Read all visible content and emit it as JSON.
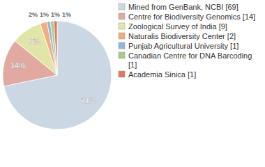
{
  "chart_data": {
    "type": "pie",
    "categories": [
      "Mined from GenBank, NCBI [69]",
      "Centre for Biodiversity Genomics [14]",
      "Zoological Survey of India [9]",
      "Naturalis Biodiversity Center [2]",
      "Punjab Agricultural University [1]",
      "Canadian Centre for DNA Barcoding [1]",
      "Academia Sinica [1]"
    ],
    "values": [
      71,
      14,
      9,
      2,
      1,
      1,
      1
    ],
    "value_labels": [
      "71%",
      "14%",
      "9%",
      "2%",
      "1%",
      "1%",
      "1%"
    ],
    "colors": [
      "#cbd8e4",
      "#e2a9a0",
      "#e1e6a8",
      "#f1ae7c",
      "#93b6d8",
      "#a9cc8c",
      "#e0775a"
    ],
    "data_labels": true,
    "legend": "right"
  }
}
